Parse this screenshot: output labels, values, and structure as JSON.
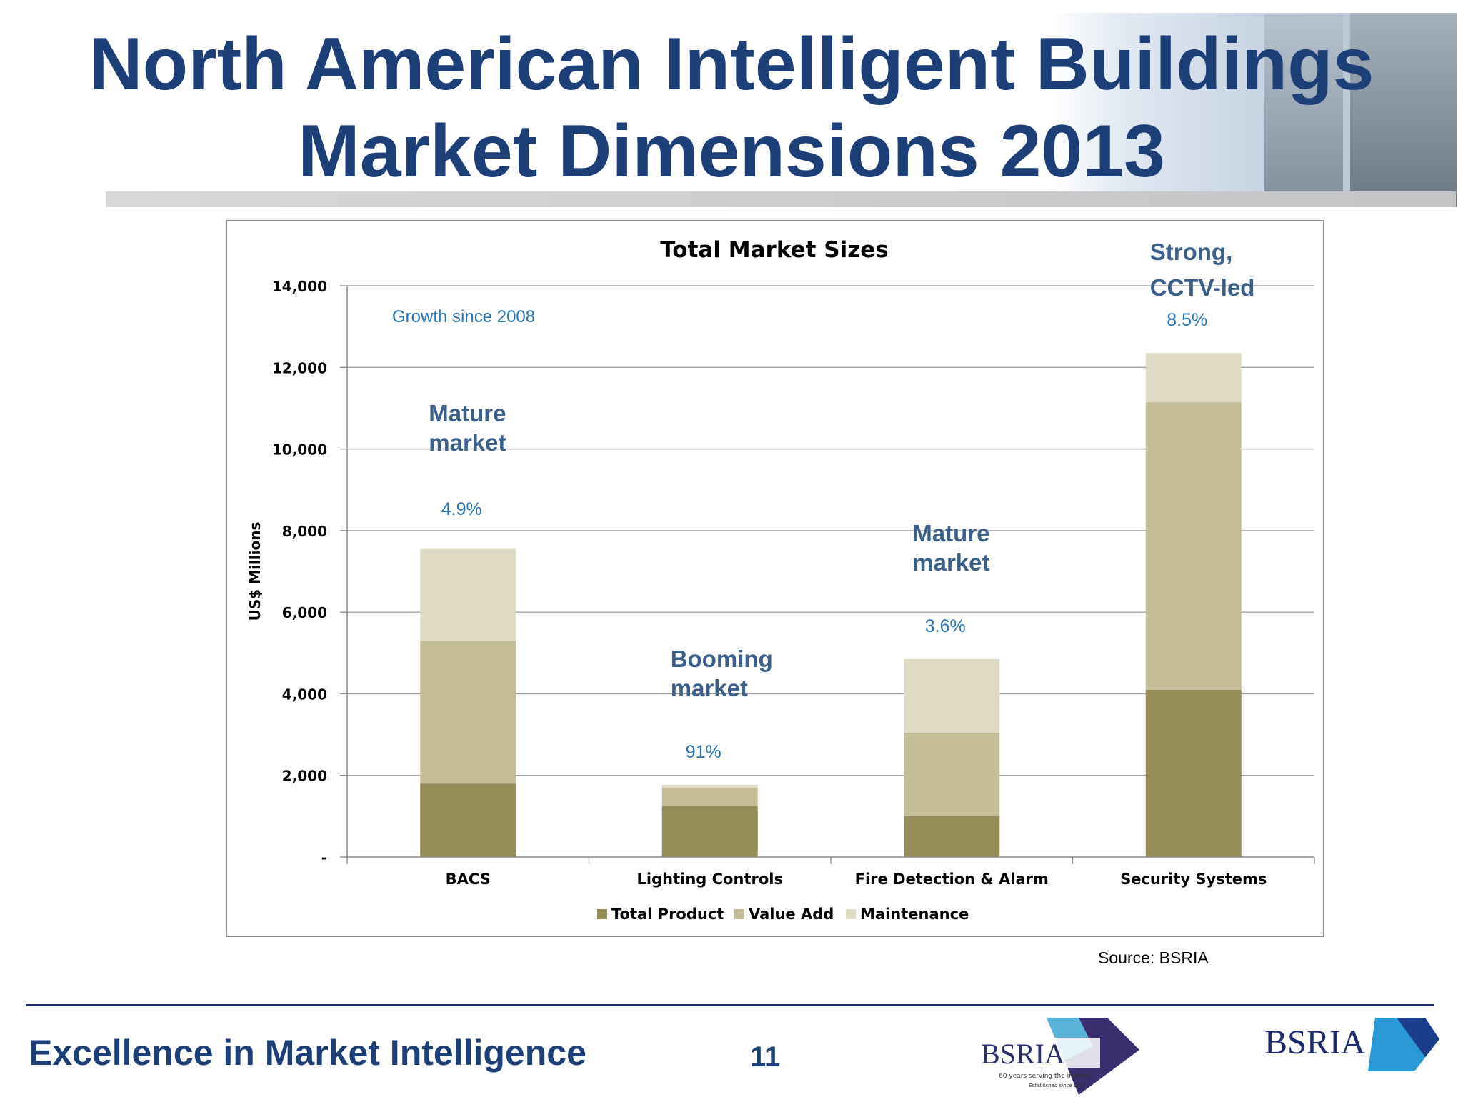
{
  "slide": {
    "title_line1": "North American Intelligent Buildings",
    "title_line2": "Market Dimensions 2013",
    "source": "Source: BSRIA",
    "tagline": "Excellence in Market Intelligence",
    "page_number": "11",
    "logo1": {
      "text": "BSRIA",
      "subtitle": "60 years serving the industry",
      "subtitle2": "Established since 1955"
    },
    "logo2": {
      "text": "BSRIA"
    }
  },
  "colors": {
    "title": "#1d3f77",
    "annotation": "#3a5f8a",
    "growth": "#2a74b4",
    "total_product": "#958c58",
    "value_add": "#c5bd98",
    "maintenance": "#dedac4"
  },
  "chart_data": {
    "type": "bar",
    "stacked": true,
    "title": "Total Market Sizes",
    "ylabel": "US$ Millions",
    "xlabel": "",
    "ylim": [
      0,
      14000
    ],
    "y_ticks": [
      0,
      2000,
      4000,
      6000,
      8000,
      10000,
      12000,
      14000
    ],
    "y_tick_labels": [
      "-",
      "2,000",
      "4,000",
      "6,000",
      "8,000",
      "10,000",
      "12,000",
      "14,000"
    ],
    "grid": true,
    "legend_position": "bottom",
    "categories": [
      "BACS",
      "Lighting Controls",
      "Fire Detection & Alarm",
      "Security Systems"
    ],
    "series": [
      {
        "name": "Total Product",
        "values": [
          1800,
          1250,
          1000,
          4100
        ]
      },
      {
        "name": "Value Add",
        "values": [
          3500,
          450,
          2050,
          7050
        ]
      },
      {
        "name": "Maintenance",
        "values": [
          2250,
          70,
          1800,
          1200
        ]
      }
    ],
    "annotations": {
      "growth_label": "Growth since 2008",
      "items": [
        {
          "category": "BACS",
          "note": [
            "Mature",
            "market"
          ],
          "growth": "4.9%"
        },
        {
          "category": "Lighting Controls",
          "note": [
            "Booming",
            "market"
          ],
          "growth": "91%"
        },
        {
          "category": "Fire Detection & Alarm",
          "note": [
            "Mature",
            "market"
          ],
          "growth": "3.6%"
        },
        {
          "category": "Security Systems",
          "note": [
            "Strong,",
            "CCTV-led"
          ],
          "growth": "8.5%"
        }
      ]
    }
  }
}
